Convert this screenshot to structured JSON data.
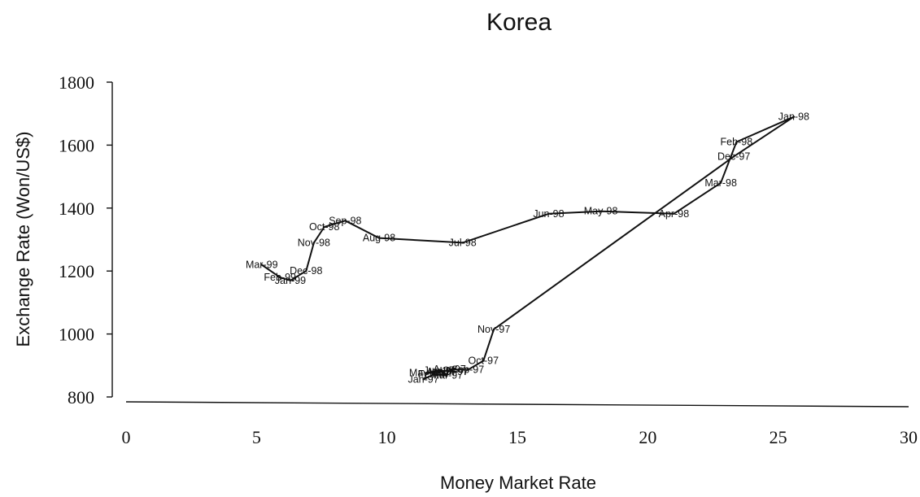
{
  "chart_data": {
    "type": "line",
    "title": "Korea",
    "xlabel": "Money Market Rate",
    "ylabel": "Exchange Rate (Won/US$)",
    "xlim": [
      0,
      30
    ],
    "ylim": [
      800,
      1800
    ],
    "xticks": [
      "0",
      "5",
      "10",
      "15",
      "20",
      "25",
      "30"
    ],
    "yticks": [
      "800",
      "1000",
      "1200",
      "1400",
      "1600",
      "1800"
    ],
    "grid": false,
    "legend": "none",
    "color": "#111111",
    "series": [
      {
        "points": [
          {
            "label": "Jan-97",
            "x": 11.4,
            "y": 856
          },
          {
            "label": "Feb-97",
            "x": 11.8,
            "y": 872
          },
          {
            "label": "Mar-97",
            "x": 12.3,
            "y": 868
          },
          {
            "label": "Apr-97",
            "x": 12.1,
            "y": 880
          },
          {
            "label": "May-97",
            "x": 11.5,
            "y": 876
          },
          {
            "label": "Jun-97",
            "x": 12.0,
            "y": 884
          },
          {
            "label": "Jul-97",
            "x": 12.6,
            "y": 880
          },
          {
            "label": "Aug-97",
            "x": 12.4,
            "y": 888
          },
          {
            "label": "Sep-97",
            "x": 13.1,
            "y": 886
          },
          {
            "label": "Oct-97",
            "x": 13.7,
            "y": 915
          },
          {
            "label": "Nov-97",
            "x": 14.1,
            "y": 1015
          },
          {
            "label": "Dec-97",
            "x": 23.3,
            "y": 1564
          },
          {
            "label": "Jan-98",
            "x": 25.6,
            "y": 1690
          },
          {
            "label": "Feb-98",
            "x": 23.4,
            "y": 1610
          },
          {
            "label": "Mar-98",
            "x": 22.8,
            "y": 1480
          },
          {
            "label": "Apr-98",
            "x": 21.0,
            "y": 1382
          },
          {
            "label": "May-98",
            "x": 18.2,
            "y": 1390
          },
          {
            "label": "Jun-98",
            "x": 16.2,
            "y": 1382
          },
          {
            "label": "Jul-98",
            "x": 12.9,
            "y": 1290
          },
          {
            "label": "Aug-98",
            "x": 9.7,
            "y": 1305
          },
          {
            "label": "Sep-98",
            "x": 8.4,
            "y": 1360
          },
          {
            "label": "Oct-98",
            "x": 7.6,
            "y": 1340
          },
          {
            "label": "Nov-98",
            "x": 7.2,
            "y": 1290
          },
          {
            "label": "Dec-98",
            "x": 6.9,
            "y": 1200
          },
          {
            "label": "Jan-99",
            "x": 6.3,
            "y": 1170
          },
          {
            "label": "Feb-99",
            "x": 5.9,
            "y": 1180
          },
          {
            "label": "Mar-99",
            "x": 5.2,
            "y": 1220
          }
        ]
      }
    ]
  }
}
